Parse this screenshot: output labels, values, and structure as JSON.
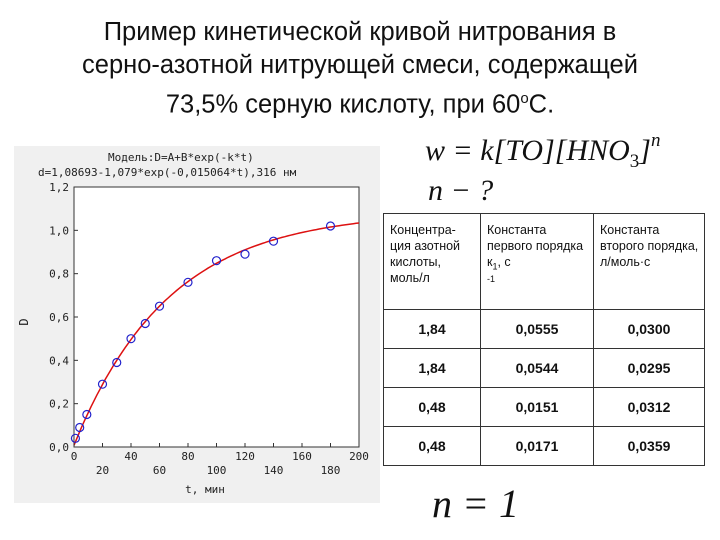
{
  "title": {
    "line1": "Пример кинетической кривой нитрования в",
    "line2": "серно-азотной нитрующей смеси, содержащей",
    "line3_pre": "73,5% серную кислоту, при 60",
    "line3_deg": "о",
    "line3_post": "С."
  },
  "formula": {
    "w": "w",
    "eq": " = ",
    "k": "k",
    "to": "[TO][HNO",
    "sub3": "3",
    "close": "]",
    "n": "n",
    "question": "n − ?",
    "result": "n = 1"
  },
  "chart_data": {
    "type": "scatter",
    "model_line": "Модель:D=A+B*exp(-k*t)",
    "fit_line": "d=1,08693-1,079*exp(-0,015064*t),316  нм",
    "xlabel": "t, мин",
    "ylabel": "D",
    "xlim": [
      0,
      200
    ],
    "ylim": [
      0,
      1.2
    ],
    "xticks_top": [
      "0",
      "40",
      "80",
      "120",
      "160",
      "200"
    ],
    "xticks_bottom": [
      "20",
      "60",
      "100",
      "140",
      "180"
    ],
    "yticks": [
      "0,0",
      "0,2",
      "0,4",
      "0,6",
      "0,8",
      "1,0",
      "1,2"
    ],
    "fit": {
      "A": 1.08693,
      "B": 1.079,
      "k": 0.015064
    },
    "points": [
      {
        "t": 1,
        "D": 0.04
      },
      {
        "t": 4,
        "D": 0.09
      },
      {
        "t": 9,
        "D": 0.15
      },
      {
        "t": 20,
        "D": 0.29
      },
      {
        "t": 30,
        "D": 0.39
      },
      {
        "t": 40,
        "D": 0.5
      },
      {
        "t": 50,
        "D": 0.57
      },
      {
        "t": 60,
        "D": 0.65
      },
      {
        "t": 80,
        "D": 0.76
      },
      {
        "t": 100,
        "D": 0.86
      },
      {
        "t": 120,
        "D": 0.89
      },
      {
        "t": 140,
        "D": 0.95
      },
      {
        "t": 180,
        "D": 1.02
      }
    ],
    "grid": false,
    "colors": {
      "points": "#2222cc",
      "curve": "#dd1111"
    }
  },
  "table": {
    "headers": {
      "c1": "Концентра-ция азотной кислоты, моль/л",
      "c2_main": "Константа первого порядка к",
      "c2_sub": "1",
      "c2_tail": ", с",
      "c2_exp": "-1",
      "c3": "Константа второго порядка, л/моль·с"
    },
    "rows": [
      [
        "1,84",
        "0,0555",
        "0,0300"
      ],
      [
        "1,84",
        "0,0544",
        "0,0295"
      ],
      [
        "0,48",
        "0,0151",
        "0,0312"
      ],
      [
        "0,48",
        "0,0171",
        "0,0359"
      ]
    ]
  }
}
